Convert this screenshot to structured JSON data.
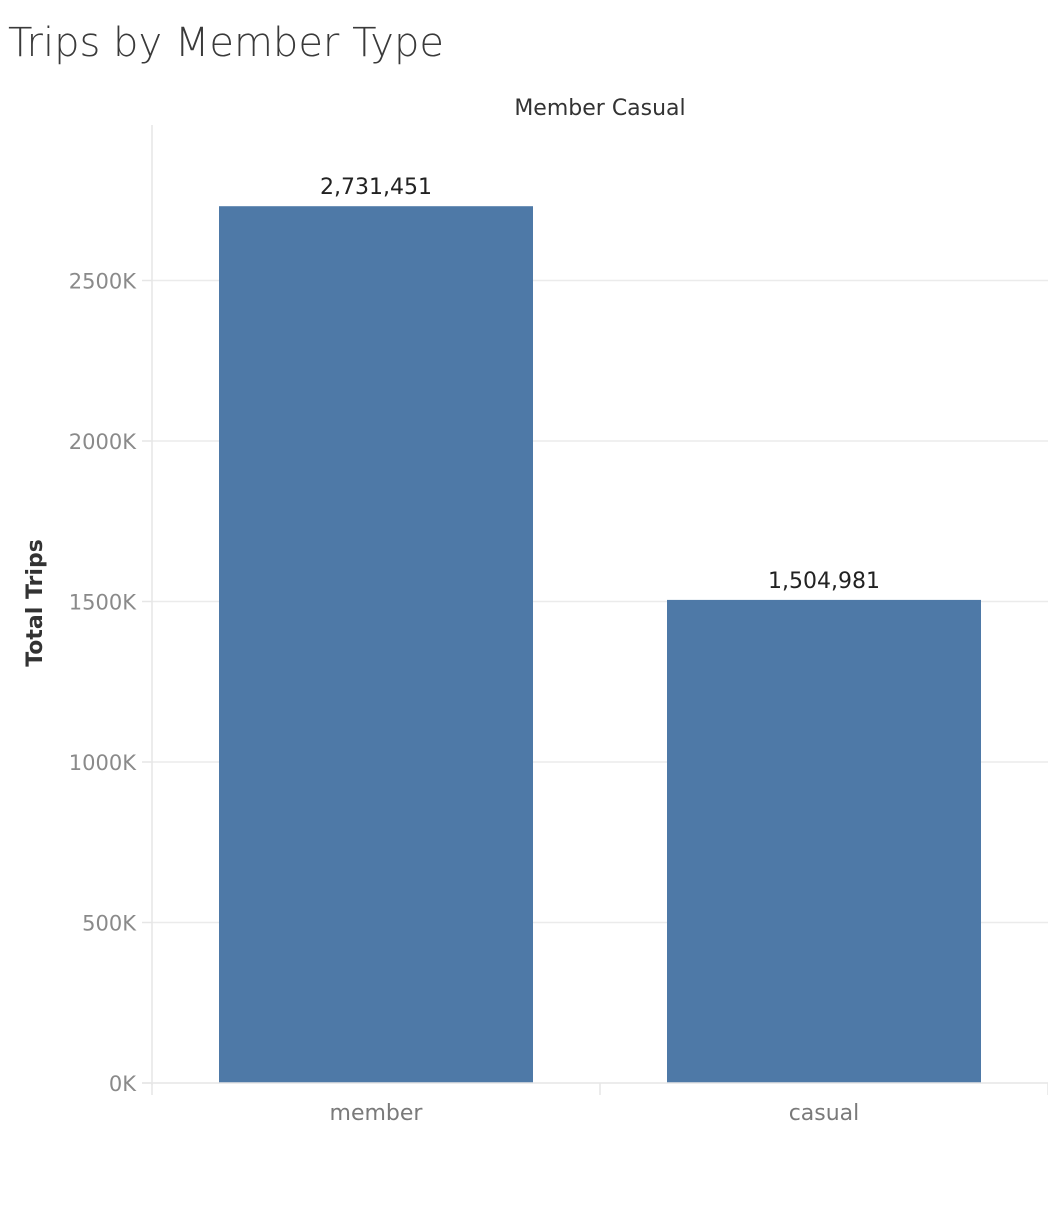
{
  "chart_data": {
    "type": "bar",
    "title": "Trips by Member Type",
    "column_header": "Member Casual",
    "xlabel": "",
    "ylabel": "Total Trips",
    "categories": [
      "member",
      "casual"
    ],
    "values": [
      2731451,
      1504981
    ],
    "data_labels": [
      "2,731,451",
      "1,504,981"
    ],
    "ylim": [
      0,
      2930000
    ],
    "yticks": [
      0,
      500000,
      1000000,
      1500000,
      2000000,
      2500000
    ],
    "ytick_labels": [
      "0K",
      "500K",
      "1000K",
      "1500K",
      "2000K",
      "2500K"
    ],
    "grid": true,
    "legend": "none",
    "colors": {
      "bar": "#4e79a7",
      "grid": "#ebebeb",
      "axis": "#e6e6e6"
    }
  }
}
